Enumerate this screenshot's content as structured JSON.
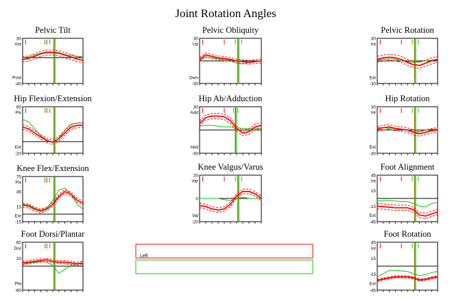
{
  "page": {
    "title": "Joint Rotation Angles"
  },
  "legend": [
    {
      "label": "Left",
      "color": "#ff0000"
    },
    {
      "label": "",
      "color": "#00cc00"
    }
  ],
  "colors": {
    "left": "#ff0000",
    "right": "#00cc00",
    "toeoff": "#808000"
  },
  "chart_data": [
    {
      "id": "pelvic-tilt",
      "type": "line",
      "title": "Pelvic Tilt",
      "ylim": [
        -40,
        30
      ],
      "y_ticks": [
        "30",
        "Ant",
        "Post",
        "-40"
      ],
      "zero": 0,
      "toe_off": 52,
      "red_events": [
        5,
        40
      ],
      "green_events": [
        37,
        45
      ],
      "red_x": [
        0,
        10,
        20,
        30,
        40,
        50,
        60,
        70,
        80,
        90,
        100
      ],
      "red_mean": [
        -3,
        -1,
        2,
        6,
        8,
        8,
        7,
        4,
        1,
        -2,
        -4
      ],
      "red_sd": 4,
      "green_x": [
        0,
        10,
        20,
        30,
        40,
        50,
        60,
        70,
        80,
        90,
        100
      ],
      "green_mean": [
        0,
        1,
        4,
        7,
        9,
        9,
        8,
        5,
        3,
        2,
        2
      ]
    },
    {
      "id": "pelvic-obliquity",
      "type": "line",
      "title": "Pelvic Obliquity",
      "ylim": [
        -30,
        30
      ],
      "y_ticks": [
        "30",
        "Up",
        "Dwn",
        "-30"
      ],
      "zero": 0,
      "toe_off": 62,
      "red_events": [
        5,
        40
      ],
      "green_events": [
        58,
        68
      ],
      "red_x": [
        0,
        10,
        20,
        30,
        40,
        50,
        60,
        70,
        80,
        90,
        100
      ],
      "red_mean": [
        2,
        8,
        6,
        4,
        3,
        2,
        0,
        -1,
        -2,
        -1,
        0
      ],
      "red_sd": 2.5,
      "green_x": [
        0,
        10,
        20,
        30,
        40,
        50,
        60,
        70,
        80,
        90,
        100
      ],
      "green_mean": [
        1,
        5,
        4,
        3,
        2,
        1,
        -3,
        -4,
        -2,
        -1,
        0
      ]
    },
    {
      "id": "pelvic-rotation",
      "type": "line",
      "title": "Pelvic Rotation",
      "ylim": [
        -30,
        30
      ],
      "y_ticks": [
        "30",
        "Int",
        "Ext",
        "-30"
      ],
      "zero": 0,
      "toe_off": 62,
      "red_events": [
        5,
        40
      ],
      "green_events": [
        58,
        68
      ],
      "red_x": [
        0,
        10,
        20,
        30,
        40,
        50,
        60,
        70,
        80,
        90,
        100
      ],
      "red_mean": [
        2,
        4,
        5,
        4,
        2,
        -2,
        -5,
        -6,
        -3,
        0,
        2
      ],
      "red_sd": 4,
      "green_x": [
        0,
        10,
        20,
        30,
        40,
        50,
        60,
        70,
        80,
        90,
        100
      ],
      "green_mean": [
        1,
        2,
        3,
        2,
        0,
        -1,
        -2,
        -1,
        0,
        1,
        2
      ]
    },
    {
      "id": "hip-flexion-extension",
      "type": "line",
      "title": "Hip Flexion/Extension",
      "ylim": [
        -20,
        60
      ],
      "y_ticks": [
        "60",
        "Flx",
        "Ext",
        "-20"
      ],
      "zero": 0,
      "toe_off": 52,
      "red_events": [
        5,
        40
      ],
      "green_events": [
        37,
        45
      ],
      "red_x": [
        0,
        10,
        20,
        30,
        40,
        50,
        60,
        70,
        80,
        90,
        100
      ],
      "red_mean": [
        25,
        22,
        15,
        8,
        2,
        -1,
        5,
        15,
        25,
        28,
        28
      ],
      "red_sd": 4,
      "green_x": [
        0,
        10,
        20,
        30,
        40,
        50,
        60,
        70,
        80,
        90,
        100
      ],
      "green_mean": [
        38,
        34,
        22,
        10,
        3,
        -2,
        6,
        20,
        30,
        32,
        32
      ]
    },
    {
      "id": "hip-ab-adduction",
      "type": "line",
      "title": "Hip Ab/Adduction",
      "ylim": [
        -30,
        30
      ],
      "y_ticks": [
        "30",
        "Add",
        "Abd",
        "-30"
      ],
      "zero": 0,
      "toe_off": 58,
      "red_events": [
        5,
        40
      ],
      "green_events": [
        55,
        62
      ],
      "red_x": [
        0,
        10,
        20,
        30,
        40,
        50,
        60,
        70,
        80,
        90,
        100
      ],
      "red_mean": [
        8,
        16,
        18,
        18,
        17,
        12,
        2,
        -4,
        -2,
        4,
        6
      ],
      "red_sd": 3.5,
      "green_x": [
        0,
        10,
        20,
        30,
        40,
        50,
        60,
        70,
        80,
        90,
        100
      ],
      "green_mean": [
        5,
        6,
        6,
        5,
        4,
        4,
        3,
        2,
        2,
        2,
        2
      ]
    },
    {
      "id": "hip-rotation",
      "type": "line",
      "title": "Hip Rotation",
      "ylim": [
        -30,
        30
      ],
      "y_ticks": [
        "30",
        "Int",
        "Ext",
        "-30"
      ],
      "zero": 0,
      "toe_off": 62,
      "red_events": [
        5,
        40
      ],
      "green_events": [
        58,
        68
      ],
      "red_x": [
        0,
        10,
        20,
        30,
        40,
        50,
        60,
        70,
        80,
        90,
        100
      ],
      "red_mean": [
        1,
        3,
        4,
        2,
        1,
        0,
        -3,
        -5,
        -3,
        -1,
        0
      ],
      "red_sd": 3,
      "green_x": [
        0,
        10,
        20,
        30,
        40,
        50,
        60,
        70,
        80,
        90,
        100
      ],
      "green_mean": [
        3,
        3,
        2,
        2,
        1,
        0,
        -2,
        -3,
        0,
        1,
        1
      ]
    },
    {
      "id": "knee-flex-extension",
      "type": "line",
      "title": "Knee Flex/Extension",
      "ylim": [
        -15,
        75
      ],
      "y_ticks": [
        "75",
        "Flx",
        "45",
        "15",
        "Ext",
        "-15"
      ],
      "zero": 0,
      "toe_off": 52,
      "red_events": [
        5,
        40
      ],
      "green_events": [
        37,
        45
      ],
      "red_x": [
        0,
        10,
        20,
        30,
        40,
        50,
        60,
        70,
        80,
        90,
        100
      ],
      "red_mean": [
        18,
        16,
        10,
        6,
        10,
        20,
        35,
        45,
        40,
        28,
        22
      ],
      "red_sd": 4,
      "green_x": [
        0,
        10,
        20,
        30,
        40,
        50,
        60,
        70,
        80,
        90,
        100
      ],
      "green_mean": [
        20,
        18,
        12,
        8,
        12,
        28,
        48,
        52,
        40,
        20,
        10
      ]
    },
    {
      "id": "knee-valgus-varus",
      "type": "line",
      "title": "Knee Valgus/Varus",
      "ylim": [
        -20,
        20
      ],
      "y_ticks": [
        "20",
        "Var",
        "0",
        "Val",
        "-20"
      ],
      "zero": 0,
      "toe_off": 62,
      "red_events": [
        5,
        40
      ],
      "green_events": [
        58,
        68
      ],
      "red_x": [
        0,
        10,
        20,
        30,
        40,
        50,
        60,
        70,
        80,
        90,
        100
      ],
      "red_mean": [
        -6,
        -7,
        -9,
        -10,
        -9,
        -5,
        2,
        6,
        6,
        4,
        0
      ],
      "red_sd": 2,
      "green_x": [
        0,
        10,
        20,
        30,
        40,
        50,
        60,
        70,
        80,
        90,
        100
      ],
      "green_mean": [
        0,
        0,
        0,
        0,
        -1,
        -2,
        0,
        1,
        0,
        0,
        0
      ]
    },
    {
      "id": "foot-alignment",
      "type": "line",
      "title": "Foot Alignment",
      "ylim": [
        -45,
        45
      ],
      "y_ticks": [
        "45",
        "Int",
        "15",
        "-15",
        "Ext",
        "-45"
      ],
      "zero": 0,
      "toe_off": 62,
      "red_events": [
        5,
        40
      ],
      "green_events": [
        58,
        68
      ],
      "red_x": [
        0,
        10,
        20,
        30,
        40,
        50,
        60,
        70,
        80,
        90,
        100
      ],
      "red_mean": [
        -15,
        -16,
        -17,
        -18,
        -18,
        -18,
        -22,
        -32,
        -34,
        -30,
        -26
      ],
      "red_sd": 5,
      "green_x": [
        0,
        10,
        20,
        30,
        40,
        50,
        60,
        70,
        80,
        90,
        100
      ],
      "green_mean": [
        -5,
        -4,
        -4,
        -5,
        -6,
        -6,
        -10,
        -15,
        -16,
        -10,
        -8
      ]
    },
    {
      "id": "foot-dorsi-plantar",
      "type": "line",
      "title": "Foot Dorsi/Plantar",
      "ylim": [
        -60,
        60
      ],
      "y_ticks": [
        "60",
        "Dor",
        "20",
        "Pla",
        "-60"
      ],
      "zero": 0,
      "toe_off": 52,
      "red_events": [
        5,
        40
      ],
      "green_events": [
        37,
        45
      ],
      "red_x": [
        0,
        10,
        20,
        30,
        40,
        50,
        60,
        70,
        80,
        90,
        100
      ],
      "red_mean": [
        8,
        10,
        12,
        14,
        16,
        12,
        10,
        10,
        8,
        6,
        8
      ],
      "red_sd": 4,
      "green_x": [
        0,
        10,
        20,
        30,
        40,
        50,
        60,
        70,
        80,
        90,
        100
      ],
      "green_mean": [
        4,
        8,
        10,
        12,
        10,
        2,
        -18,
        -8,
        2,
        5,
        6
      ]
    },
    {
      "id": "foot-rotation",
      "type": "line",
      "title": "Foot Rotation",
      "ylim": [
        -45,
        45
      ],
      "y_ticks": [
        "45",
        "Int",
        "15",
        "-15",
        "Ext",
        "-45"
      ],
      "zero": 0,
      "toe_off": 62,
      "red_events": [
        5,
        40
      ],
      "green_events": [
        58,
        68
      ],
      "red_x": [
        0,
        10,
        20,
        30,
        40,
        50,
        60,
        70,
        80,
        90,
        100
      ],
      "red_mean": [
        -27,
        -24,
        -22,
        -20,
        -20,
        -20,
        -22,
        -26,
        -25,
        -22,
        -20
      ],
      "red_sd": 2,
      "green_x": [
        0,
        10,
        20,
        30,
        40,
        50,
        60,
        70,
        80,
        90,
        100
      ],
      "green_mean": [
        -20,
        -14,
        -8,
        -8,
        -9,
        -10,
        -14,
        -18,
        -16,
        -12,
        -10
      ]
    }
  ]
}
